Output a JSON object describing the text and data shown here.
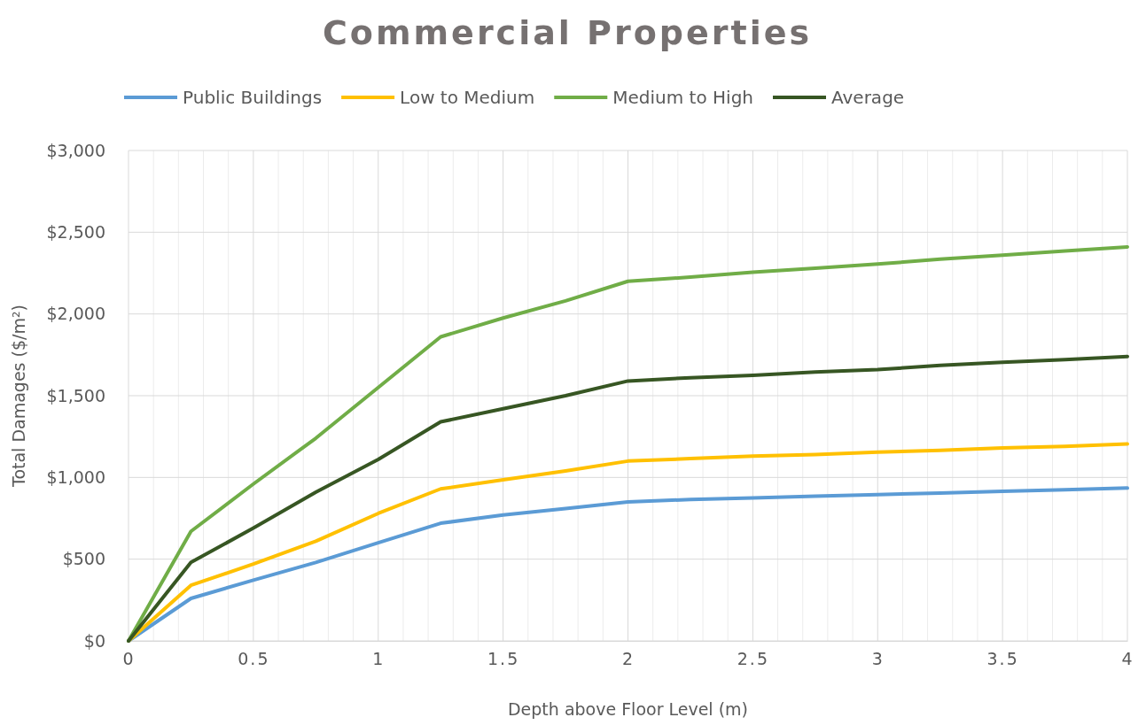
{
  "chart_data": {
    "type": "line",
    "title": "Commercial Properties",
    "xlabel": "Depth above Floor Level (m)",
    "ylabel": "Total Damages ($/m²)",
    "x": [
      0,
      0.25,
      0.5,
      0.75,
      1,
      1.25,
      1.5,
      1.75,
      2,
      2.25,
      2.5,
      2.75,
      3,
      3.25,
      3.5,
      3.75,
      4
    ],
    "series": [
      {
        "name": "Public Buildings",
        "color": "#5b9bd5",
        "values": [
          0,
          260,
          372,
          480,
          600,
          720,
          770,
          810,
          850,
          865,
          875,
          885,
          895,
          905,
          915,
          925,
          935
        ]
      },
      {
        "name": "Low to Medium",
        "color": "#ffc000",
        "values": [
          0,
          340,
          470,
          610,
          780,
          930,
          985,
          1040,
          1100,
          1115,
          1130,
          1140,
          1155,
          1165,
          1180,
          1190,
          1205
        ]
      },
      {
        "name": "Medium to High",
        "color": "#70ad47",
        "values": [
          0,
          670,
          960,
          1240,
          1550,
          1860,
          1975,
          2080,
          2200,
          2225,
          2255,
          2280,
          2305,
          2335,
          2360,
          2385,
          2410
        ]
      },
      {
        "name": "Average",
        "color": "#375623",
        "values": [
          0,
          480,
          690,
          910,
          1110,
          1340,
          1420,
          1500,
          1590,
          1610,
          1625,
          1645,
          1660,
          1685,
          1705,
          1720,
          1740
        ]
      }
    ],
    "xlim": [
      0,
      4
    ],
    "xticks": [
      0,
      {
        "value": 0.1,
        "label": null
      },
      {
        "value": 0.2,
        "label": null
      },
      {
        "value": 0.3,
        "label": null
      },
      {
        "value": 0.4,
        "label": null
      },
      0.5,
      {
        "value": 0.6,
        "label": null
      },
      {
        "value": 0.7,
        "label": null
      },
      {
        "value": 0.8,
        "label": null
      },
      {
        "value": 0.9,
        "label": null
      },
      1,
      {
        "value": 1.1,
        "label": null
      },
      {
        "value": 1.2,
        "label": null
      },
      {
        "value": 1.3,
        "label": null
      },
      {
        "value": 1.4,
        "label": null
      },
      1.5,
      {
        "value": 1.6,
        "label": null
      },
      {
        "value": 1.7,
        "label": null
      },
      {
        "value": 1.8,
        "label": null
      },
      {
        "value": 1.9,
        "label": null
      },
      2,
      {
        "value": 2.1,
        "label": null
      },
      {
        "value": 2.2,
        "label": null
      },
      {
        "value": 2.3,
        "label": null
      },
      {
        "value": 2.4,
        "label": null
      },
      2.5,
      {
        "value": 2.6,
        "label": null
      },
      {
        "value": 2.7,
        "label": null
      },
      {
        "value": 2.8,
        "label": null
      },
      {
        "value": 2.9,
        "label": null
      },
      3,
      {
        "value": 3.1,
        "label": null
      },
      {
        "value": 3.2,
        "label": null
      },
      {
        "value": 3.3,
        "label": null
      },
      {
        "value": 3.4,
        "label": null
      },
      3.5,
      {
        "value": 3.6,
        "label": null
      },
      {
        "value": 3.7,
        "label": null
      },
      {
        "value": 3.8,
        "label": null
      },
      {
        "value": 3.9,
        "label": null
      },
      4
    ],
    "ylim": [
      0,
      3000
    ],
    "yticks": [
      {
        "value": 0,
        "label": "$0"
      },
      {
        "value": 500,
        "label": "$500"
      },
      {
        "value": 1000,
        "label": "$1,000"
      },
      {
        "value": 1500,
        "label": "$1,500"
      },
      {
        "value": 2000,
        "label": "$2,000"
      },
      {
        "value": 2500,
        "label": "$2,500"
      },
      {
        "value": 3000,
        "label": "$3,000"
      }
    ],
    "grid": true,
    "legend": "top",
    "marker": "none",
    "line_style": "solid"
  }
}
